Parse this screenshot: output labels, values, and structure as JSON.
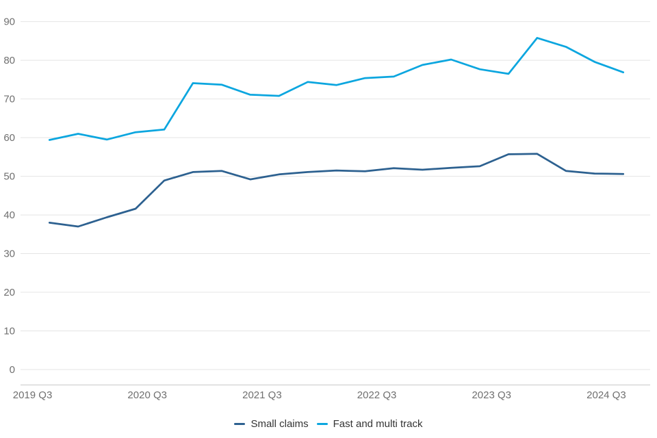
{
  "chart_data": {
    "type": "line",
    "title": "",
    "xlabel": "",
    "ylabel": "",
    "grid": "horizontal",
    "legend_position": "bottom-center",
    "ylim": [
      0,
      90
    ],
    "y_ticks": [
      0,
      10,
      20,
      30,
      40,
      50,
      60,
      70,
      80,
      90
    ],
    "categories": [
      "2019 Q3",
      "2019 Q4",
      "2020 Q1",
      "2020 Q2",
      "2020 Q3",
      "2020 Q4",
      "2021 Q1",
      "2021 Q2",
      "2021 Q3",
      "2021 Q4",
      "2022 Q1",
      "2022 Q2",
      "2022 Q3",
      "2022 Q4",
      "2023 Q1",
      "2023 Q2",
      "2023 Q3",
      "2023 Q4",
      "2024 Q1",
      "2024 Q2",
      "2024 Q3"
    ],
    "x_tick_indices": [
      0,
      4,
      8,
      12,
      16,
      20
    ],
    "x_tick_labels": [
      "2019 Q3",
      "2020 Q3",
      "2021 Q3",
      "2022 Q3",
      "2023 Q3",
      "2024 Q3"
    ],
    "series": [
      {
        "name": "Small claims",
        "color": "#2d6190",
        "values": [
          38.0,
          37.0,
          39.4,
          41.6,
          48.9,
          51.1,
          51.4,
          49.2,
          50.5,
          51.1,
          51.5,
          51.3,
          52.1,
          51.7,
          52.2,
          52.6,
          55.7,
          55.8,
          51.4,
          50.7,
          50.6
        ]
      },
      {
        "name": "Fast and multi track",
        "color": "#0ca6df",
        "values": [
          59.4,
          61.0,
          59.5,
          61.4,
          62.1,
          74.1,
          73.7,
          71.1,
          70.8,
          74.4,
          73.6,
          75.4,
          75.8,
          78.8,
          80.2,
          77.7,
          76.5,
          85.8,
          83.5,
          79.6,
          76.9
        ]
      }
    ],
    "colors": {
      "grid": "#e4e4e4",
      "axis_line": "#c9c9c9",
      "tick_label": "#6f6f6f",
      "legend_text": "#333333"
    }
  }
}
